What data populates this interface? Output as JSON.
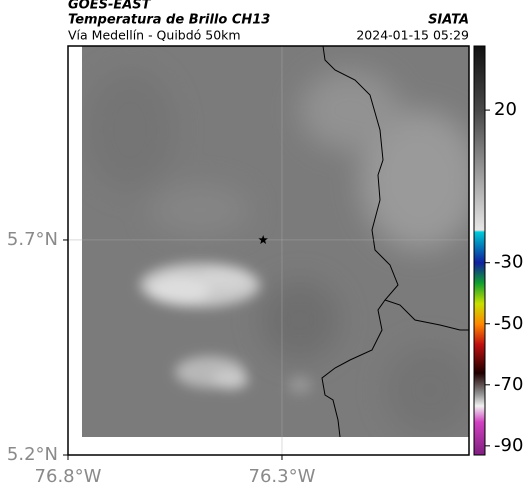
{
  "header": {
    "source": "GOES-EAST",
    "product": "Temperatura de Brillo CH13",
    "agency": "SIATA",
    "region": "Vía Medellín - Quibdó 50km",
    "datetime": "2024-01-15 05:29"
  },
  "map": {
    "xlim": [
      -76.8,
      -75.863
    ],
    "ylim": [
      5.2,
      6.151
    ],
    "xticks": [
      {
        "value": -76.8,
        "label": "76.8°W"
      },
      {
        "value": -76.3,
        "label": "76.3°W"
      }
    ],
    "yticks": [
      {
        "value": 5.7,
        "label": "5.7°N"
      },
      {
        "value": 5.2,
        "label": "5.2°N"
      }
    ],
    "marker": {
      "lon": -76.344,
      "lat": 5.7
    }
  },
  "colorbar": {
    "clim": [
      -93,
      41
    ],
    "ticks": [
      20,
      -30,
      -50,
      -70,
      -90
    ]
  }
}
